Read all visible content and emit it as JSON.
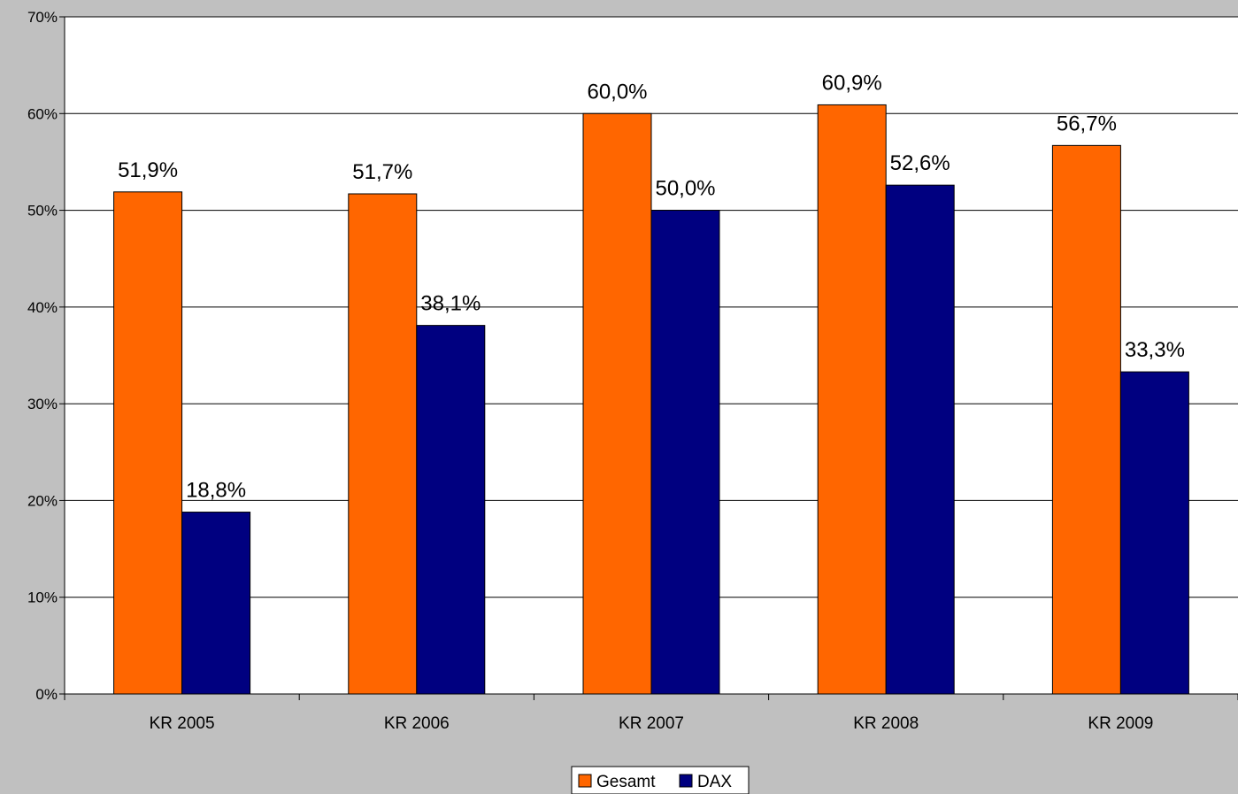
{
  "chart_data": {
    "type": "bar",
    "categories": [
      "KR 2005",
      "KR 2006",
      "KR 2007",
      "KR 2008",
      "KR 2009"
    ],
    "series": [
      {
        "name": "Gesamt",
        "color": "#ff6600",
        "values": [
          51.9,
          51.7,
          60.0,
          60.9,
          56.7
        ],
        "labels": [
          "51,9%",
          "51,7%",
          "60,0%",
          "60,9%",
          "56,7%"
        ]
      },
      {
        "name": "DAX",
        "color": "#000080",
        "values": [
          18.8,
          38.1,
          50.0,
          52.6,
          33.3
        ],
        "labels": [
          "18,8%",
          "38,1%",
          "50,0%",
          "52,6%",
          "33,3%"
        ]
      }
    ],
    "ylim": [
      0,
      70
    ],
    "yticks": [
      "0%",
      "10%",
      "20%",
      "30%",
      "40%",
      "50%",
      "60%",
      "70%"
    ],
    "grid": true,
    "legend_position": "bottom-center",
    "title": "",
    "xlabel": "",
    "ylabel": ""
  }
}
